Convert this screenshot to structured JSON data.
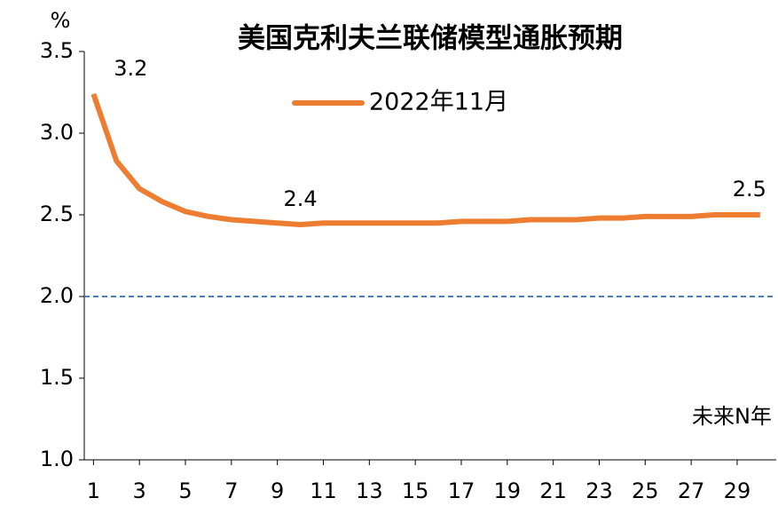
{
  "chart_data": {
    "type": "line",
    "title": "美国克利夫兰联储模型通胀预期",
    "y_unit": "%",
    "annotation": "未来N年",
    "x": [
      1,
      2,
      3,
      4,
      5,
      6,
      7,
      8,
      9,
      10,
      11,
      12,
      13,
      14,
      15,
      16,
      17,
      18,
      19,
      20,
      21,
      22,
      23,
      24,
      25,
      26,
      27,
      28,
      29,
      30
    ],
    "xlim": [
      0.6,
      30.7
    ],
    "xticks": [
      1,
      3,
      5,
      7,
      9,
      11,
      13,
      15,
      17,
      19,
      21,
      23,
      25,
      27,
      29
    ],
    "ylim": [
      1,
      3.5
    ],
    "yticks": [
      {
        "value": 1,
        "label": "1.0"
      },
      1.5,
      {
        "value": 2,
        "label": "2.0"
      },
      2.5,
      {
        "value": 3,
        "label": "3.0"
      },
      3.5
    ],
    "grid": false,
    "legend": "top",
    "series": [
      {
        "name": "2022年11月",
        "color": "#ed7d31",
        "values": [
          3.24,
          2.83,
          2.66,
          2.58,
          2.52,
          2.49,
          2.47,
          2.46,
          2.45,
          2.44,
          2.45,
          2.45,
          2.45,
          2.45,
          2.45,
          2.45,
          2.46,
          2.46,
          2.46,
          2.47,
          2.47,
          2.47,
          2.48,
          2.48,
          2.49,
          2.49,
          2.49,
          2.5,
          2.5,
          2.5
        ],
        "value_labels": [
          "3.2",
          null,
          null,
          null,
          null,
          null,
          null,
          null,
          null,
          "2.4",
          null,
          null,
          null,
          null,
          null,
          null,
          null,
          null,
          null,
          null,
          null,
          null,
          null,
          null,
          null,
          null,
          null,
          null,
          null,
          "2.5"
        ]
      }
    ],
    "reference_line": {
      "value": 2,
      "color": "#4a7ebb",
      "style": "dashed"
    }
  }
}
